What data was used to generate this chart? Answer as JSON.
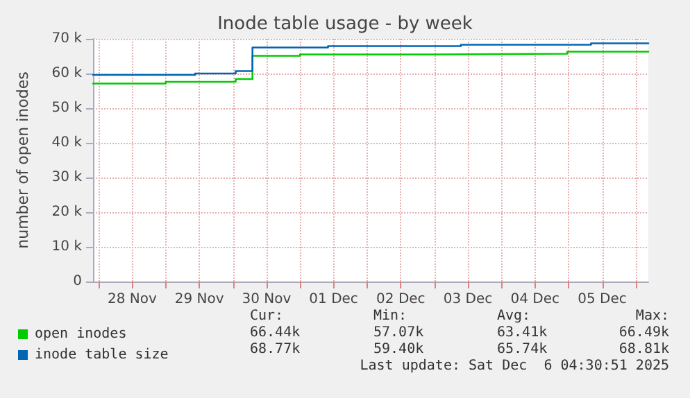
{
  "chart_data": {
    "type": "step",
    "title": "Inode table usage - by week",
    "ylabel": "number of open inodes",
    "xlim": [
      "2025-11-27T22:00",
      "2025-12-06T04:30"
    ],
    "xticks": [
      {
        "value": "2025-11-28T00:00",
        "label": null
      },
      {
        "value": "2025-11-28T12:00",
        "label": "28 Nov"
      },
      {
        "value": "2025-11-29T00:00",
        "label": null
      },
      {
        "value": "2025-11-29T12:00",
        "label": "29 Nov"
      },
      {
        "value": "2025-11-30T00:00",
        "label": null
      },
      {
        "value": "2025-11-30T12:00",
        "label": "30 Nov"
      },
      {
        "value": "2025-12-01T00:00",
        "label": null
      },
      {
        "value": "2025-12-01T12:00",
        "label": "01 Dec"
      },
      {
        "value": "2025-12-02T00:00",
        "label": null
      },
      {
        "value": "2025-12-02T12:00",
        "label": "02 Dec"
      },
      {
        "value": "2025-12-03T00:00",
        "label": null
      },
      {
        "value": "2025-12-03T12:00",
        "label": "03 Dec"
      },
      {
        "value": "2025-12-04T00:00",
        "label": null
      },
      {
        "value": "2025-12-04T12:00",
        "label": "04 Dec"
      },
      {
        "value": "2025-12-05T00:00",
        "label": null
      },
      {
        "value": "2025-12-05T12:00",
        "label": "05 Dec"
      },
      {
        "value": "2025-12-06T00:00",
        "label": null
      }
    ],
    "ylim": [
      0,
      70000
    ],
    "yticks": [
      0,
      {
        "value": 10000,
        "label": "10 k"
      },
      {
        "value": 20000,
        "label": "20 k"
      },
      {
        "value": 30000,
        "label": "30 k"
      },
      {
        "value": 40000,
        "label": "40 k"
      },
      {
        "value": 50000,
        "label": "50 k"
      },
      {
        "value": 60000,
        "label": "60 k"
      },
      {
        "value": 70000,
        "label": "70 k"
      }
    ],
    "grid": true,
    "legend": "bottom left",
    "line_style": "solid",
    "series": [
      {
        "name": "open inodes",
        "color": "#00cc00",
        "x": [
          "2025-11-27T22:00",
          "2025-11-29T00:00",
          "2025-11-30T01:00",
          "2025-11-30T07:00",
          "2025-12-01T00:00",
          "2025-12-03T00:00",
          "2025-12-04T23:30",
          "2025-12-06T04:30"
        ],
        "values": [
          57100,
          57600,
          58400,
          65100,
          65500,
          65700,
          66300,
          66400
        ]
      },
      {
        "name": "inode table size",
        "color": "#0066b3",
        "x": [
          "2025-11-27T22:00",
          "2025-11-29T10:30",
          "2025-11-30T01:00",
          "2025-11-30T07:00",
          "2025-12-01T10:00",
          "2025-12-03T09:30",
          "2025-12-05T08:00",
          "2025-12-06T04:30"
        ],
        "values": [
          59600,
          60000,
          60700,
          67500,
          67900,
          68300,
          68700,
          68800
        ]
      }
    ],
    "annotations": [
      "Cur:",
      "Min:",
      "Avg:",
      "Max:",
      "66.44k",
      "57.07k",
      "63.41k",
      "66.49k",
      "68.77k",
      "59.40k",
      "65.74k",
      "68.81k",
      "Last update: Sat Dec  6 04:30:51 2025"
    ]
  }
}
